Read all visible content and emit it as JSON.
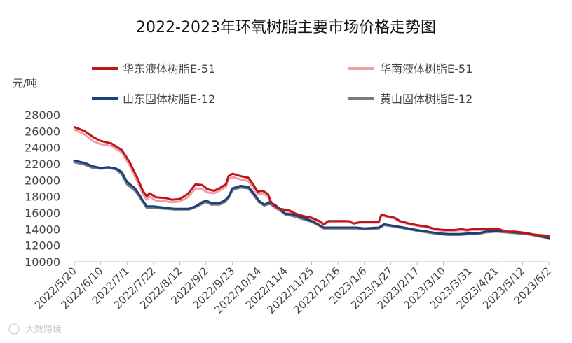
{
  "chart_data": {
    "type": "line",
    "title": "2022-2023年环氧树脂主要市场价格走势图",
    "ylabel": "元/吨",
    "xlabel": "",
    "ylim": [
      10000,
      28000
    ],
    "yticks": [
      10000,
      12000,
      14000,
      16000,
      18000,
      20000,
      22000,
      24000,
      26000,
      28000
    ],
    "x_tick_labels": [
      "2022/5/20",
      "2022/6/10",
      "2022/7/1",
      "2022/7/22",
      "2022/8/12",
      "2022/9/2",
      "2022/9/23",
      "2022/10/14",
      "2022/11/4",
      "2022/11/25",
      "2022/12/16",
      "2023/1/6",
      "2023/1/27",
      "2023/2/17",
      "2023/3/10",
      "2023/3/31",
      "2023/4/21",
      "2023/5/12",
      "2023/6/2"
    ],
    "grid": false,
    "legend_position": "top",
    "series": [
      {
        "name": "华东液体树脂E-51",
        "color": "#c0141b",
        "values": [
          [
            0,
            26500
          ],
          [
            0.4,
            26000
          ],
          [
            0.7,
            25300
          ],
          [
            1,
            24800
          ],
          [
            1.4,
            24500
          ],
          [
            1.8,
            23700
          ],
          [
            2.1,
            22200
          ],
          [
            2.4,
            20200
          ],
          [
            2.6,
            18700
          ],
          [
            2.75,
            18000
          ],
          [
            2.85,
            18400
          ],
          [
            3.1,
            17900
          ],
          [
            3.5,
            17800
          ],
          [
            3.7,
            17600
          ],
          [
            4,
            17700
          ],
          [
            4.3,
            18300
          ],
          [
            4.6,
            19500
          ],
          [
            4.85,
            19400
          ],
          [
            5.05,
            18900
          ],
          [
            5.3,
            18700
          ],
          [
            5.5,
            19000
          ],
          [
            5.75,
            19500
          ],
          [
            5.85,
            20500
          ],
          [
            6,
            20800
          ],
          [
            6.3,
            20500
          ],
          [
            6.6,
            20300
          ],
          [
            6.8,
            19400
          ],
          [
            6.95,
            18600
          ],
          [
            7.15,
            18700
          ],
          [
            7.35,
            18300
          ],
          [
            7.45,
            17400
          ],
          [
            7.6,
            16800
          ],
          [
            7.8,
            16500
          ],
          [
            8.15,
            16300
          ],
          [
            8.4,
            15900
          ],
          [
            8.7,
            15600
          ],
          [
            9,
            15400
          ],
          [
            9.35,
            14900
          ],
          [
            9.45,
            14600
          ],
          [
            9.65,
            15000
          ],
          [
            10,
            15000
          ],
          [
            10.4,
            15000
          ],
          [
            10.6,
            14700
          ],
          [
            10.9,
            14900
          ],
          [
            11.3,
            14900
          ],
          [
            11.55,
            14900
          ],
          [
            11.65,
            15800
          ],
          [
            11.85,
            15600
          ],
          [
            12.15,
            15400
          ],
          [
            12.35,
            15000
          ],
          [
            12.7,
            14700
          ],
          [
            13,
            14500
          ],
          [
            13.4,
            14300
          ],
          [
            13.7,
            14000
          ],
          [
            14.05,
            13900
          ],
          [
            14.4,
            13900
          ],
          [
            14.7,
            14000
          ],
          [
            14.9,
            13900
          ],
          [
            15.1,
            14000
          ],
          [
            15.3,
            14000
          ],
          [
            15.6,
            14000
          ],
          [
            15.8,
            14100
          ],
          [
            16.1,
            14000
          ],
          [
            16.4,
            13700
          ],
          [
            16.7,
            13700
          ],
          [
            17,
            13600
          ],
          [
            17.3,
            13400
          ],
          [
            17.55,
            13300
          ],
          [
            18,
            13200
          ]
        ]
      },
      {
        "name": "华南液体树脂E-51",
        "color": "#eda0a8",
        "values": [
          [
            0,
            26200
          ],
          [
            0.4,
            25600
          ],
          [
            0.7,
            24800
          ],
          [
            1,
            24400
          ],
          [
            1.4,
            24200
          ],
          [
            1.8,
            23400
          ],
          [
            2.1,
            21800
          ],
          [
            2.4,
            19800
          ],
          [
            2.6,
            18300
          ],
          [
            2.75,
            17600
          ],
          [
            2.85,
            18000
          ],
          [
            3.1,
            17500
          ],
          [
            3.5,
            17400
          ],
          [
            3.7,
            17300
          ],
          [
            4,
            17400
          ],
          [
            4.3,
            17900
          ],
          [
            4.6,
            19000
          ],
          [
            4.85,
            18900
          ],
          [
            5.05,
            18500
          ],
          [
            5.3,
            18400
          ],
          [
            5.5,
            18700
          ],
          [
            5.75,
            19200
          ],
          [
            5.85,
            20200
          ],
          [
            6,
            20400
          ],
          [
            6.3,
            20100
          ],
          [
            6.6,
            19900
          ],
          [
            6.8,
            19000
          ],
          [
            6.95,
            18300
          ],
          [
            7.15,
            18400
          ],
          [
            7.35,
            18000
          ],
          [
            7.45,
            17200
          ],
          [
            7.6,
            16600
          ],
          [
            7.8,
            16300
          ],
          [
            8.15,
            16100
          ],
          [
            8.4,
            15800
          ],
          [
            8.7,
            15500
          ],
          [
            9,
            15300
          ],
          [
            9.35,
            14800
          ],
          [
            9.45,
            14500
          ],
          [
            9.65,
            14900
          ],
          [
            10,
            14900
          ],
          [
            10.4,
            14900
          ],
          [
            10.6,
            14700
          ],
          [
            10.9,
            14800
          ],
          [
            11.3,
            14800
          ],
          [
            11.55,
            14800
          ],
          [
            11.65,
            15700
          ],
          [
            11.85,
            15500
          ],
          [
            12.15,
            15300
          ],
          [
            12.35,
            14900
          ],
          [
            12.7,
            14600
          ],
          [
            13,
            14400
          ],
          [
            13.4,
            14200
          ],
          [
            13.7,
            13900
          ],
          [
            14.05,
            13800
          ],
          [
            14.4,
            13800
          ],
          [
            14.7,
            13900
          ],
          [
            14.9,
            13800
          ],
          [
            15.1,
            13900
          ],
          [
            15.3,
            13900
          ],
          [
            15.6,
            13900
          ],
          [
            15.8,
            14000
          ],
          [
            16.1,
            13900
          ],
          [
            16.4,
            13600
          ],
          [
            16.7,
            13600
          ],
          [
            17,
            13500
          ],
          [
            17.3,
            13300
          ],
          [
            17.55,
            13200
          ],
          [
            18,
            13000
          ]
        ]
      },
      {
        "name": "山东固体树脂E-12",
        "color": "#1a3f7a",
        "values": [
          [
            0,
            22400
          ],
          [
            0.4,
            22100
          ],
          [
            0.7,
            21700
          ],
          [
            1,
            21500
          ],
          [
            1.3,
            21600
          ],
          [
            1.6,
            21400
          ],
          [
            1.8,
            21000
          ],
          [
            2.0,
            19800
          ],
          [
            2.3,
            19000
          ],
          [
            2.45,
            18300
          ],
          [
            2.6,
            17500
          ],
          [
            2.75,
            16800
          ],
          [
            3.0,
            16800
          ],
          [
            3.5,
            16600
          ],
          [
            3.8,
            16500
          ],
          [
            4.1,
            16500
          ],
          [
            4.35,
            16500
          ],
          [
            4.6,
            16800
          ],
          [
            4.85,
            17300
          ],
          [
            5.0,
            17500
          ],
          [
            5.2,
            17200
          ],
          [
            5.5,
            17200
          ],
          [
            5.7,
            17500
          ],
          [
            5.85,
            18000
          ],
          [
            6.0,
            19000
          ],
          [
            6.3,
            19300
          ],
          [
            6.6,
            19200
          ],
          [
            6.85,
            18200
          ],
          [
            7.0,
            17500
          ],
          [
            7.2,
            17000
          ],
          [
            7.4,
            17300
          ],
          [
            7.6,
            17000
          ],
          [
            7.8,
            16500
          ],
          [
            8.0,
            15900
          ],
          [
            8.3,
            15800
          ],
          [
            8.6,
            15500
          ],
          [
            9.0,
            15000
          ],
          [
            9.3,
            14500
          ],
          [
            9.45,
            14200
          ],
          [
            9.7,
            14200
          ],
          [
            10.2,
            14200
          ],
          [
            10.7,
            14200
          ],
          [
            11.0,
            14100
          ],
          [
            11.55,
            14200
          ],
          [
            11.75,
            14600
          ],
          [
            12.15,
            14400
          ],
          [
            12.5,
            14200
          ],
          [
            13.0,
            13900
          ],
          [
            13.4,
            13700
          ],
          [
            13.8,
            13500
          ],
          [
            14.2,
            13400
          ],
          [
            14.6,
            13400
          ],
          [
            15.0,
            13500
          ],
          [
            15.3,
            13500
          ],
          [
            15.6,
            13700
          ],
          [
            16.0,
            13800
          ],
          [
            16.4,
            13700
          ],
          [
            16.8,
            13600
          ],
          [
            17.2,
            13500
          ],
          [
            17.5,
            13300
          ],
          [
            17.8,
            13100
          ],
          [
            18,
            12900
          ]
        ]
      },
      {
        "name": "黄山固体树脂E-12",
        "color": "#7a7a7a",
        "values": [
          [
            0,
            22200
          ],
          [
            0.4,
            21900
          ],
          [
            0.7,
            21500
          ],
          [
            1,
            21400
          ],
          [
            1.3,
            21500
          ],
          [
            1.6,
            21300
          ],
          [
            1.8,
            20700
          ],
          [
            2.0,
            19500
          ],
          [
            2.3,
            18700
          ],
          [
            2.45,
            18100
          ],
          [
            2.6,
            17300
          ],
          [
            2.75,
            16600
          ],
          [
            3.0,
            16600
          ],
          [
            3.5,
            16500
          ],
          [
            3.8,
            16400
          ],
          [
            4.1,
            16400
          ],
          [
            4.35,
            16400
          ],
          [
            4.6,
            16700
          ],
          [
            4.85,
            17100
          ],
          [
            5.0,
            17300
          ],
          [
            5.2,
            17000
          ],
          [
            5.5,
            17000
          ],
          [
            5.7,
            17300
          ],
          [
            5.85,
            17800
          ],
          [
            6.0,
            18800
          ],
          [
            6.3,
            19100
          ],
          [
            6.6,
            19000
          ],
          [
            6.85,
            18000
          ],
          [
            7.0,
            17300
          ],
          [
            7.2,
            16900
          ],
          [
            7.4,
            17100
          ],
          [
            7.6,
            16800
          ],
          [
            7.8,
            16300
          ],
          [
            8.0,
            15800
          ],
          [
            8.3,
            15600
          ],
          [
            8.6,
            15300
          ],
          [
            9.0,
            14900
          ],
          [
            9.3,
            14400
          ],
          [
            9.45,
            14100
          ],
          [
            9.7,
            14100
          ],
          [
            10.2,
            14100
          ],
          [
            10.7,
            14100
          ],
          [
            11.0,
            14000
          ],
          [
            11.55,
            14100
          ],
          [
            11.75,
            14500
          ],
          [
            12.15,
            14300
          ],
          [
            12.5,
            14100
          ],
          [
            13.0,
            13800
          ],
          [
            13.4,
            13600
          ],
          [
            13.8,
            13400
          ],
          [
            14.2,
            13300
          ],
          [
            14.6,
            13300
          ],
          [
            15.0,
            13400
          ],
          [
            15.3,
            13400
          ],
          [
            15.6,
            13600
          ],
          [
            16.0,
            13700
          ],
          [
            16.4,
            13600
          ],
          [
            16.8,
            13500
          ],
          [
            17.2,
            13400
          ],
          [
            17.5,
            13200
          ],
          [
            17.8,
            13000
          ],
          [
            18,
            12800
          ]
        ]
      }
    ]
  },
  "watermark": "大数跨境"
}
